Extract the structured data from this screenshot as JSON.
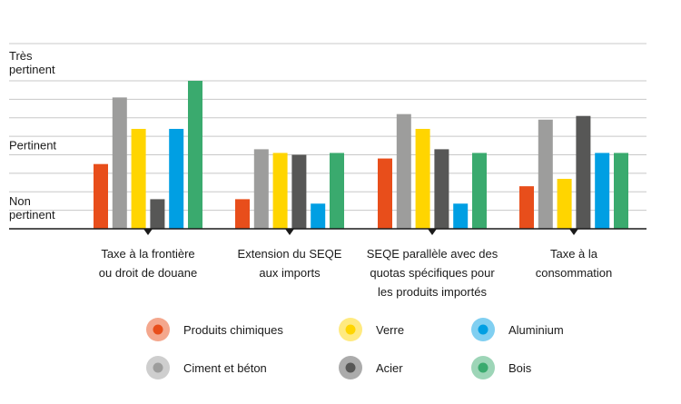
{
  "chart_data": {
    "type": "bar",
    "title": "",
    "xlabel": "",
    "ylabel": "",
    "ylim": [
      0,
      4
    ],
    "grid": true,
    "legend_position": "bottom",
    "y_tick_labels": [
      {
        "value": 0,
        "lines": [
          "Non",
          "pertinent"
        ]
      },
      {
        "value": 2,
        "lines": [
          "Pertinent"
        ]
      },
      {
        "value": 4,
        "lines": [
          "Très",
          "pertinent"
        ]
      }
    ],
    "categories": [
      [
        "Taxe à la frontière",
        "ou droit de douane"
      ],
      [
        "Extension du SEQE",
        "aux imports"
      ],
      [
        "SEQE parallèle avec des",
        "quotas spécifiques pour",
        "les produits importés"
      ],
      [
        "Taxe à la",
        "consommation"
      ]
    ],
    "series": [
      {
        "name": "Produits chimiques",
        "color": "#e84e1b",
        "values": [
          1.75,
          0.8,
          1.9,
          1.15
        ]
      },
      {
        "name": "Ciment et béton",
        "color": "#9d9d9c",
        "values": [
          3.55,
          2.15,
          3.1,
          2.95
        ]
      },
      {
        "name": "Verre",
        "color": "#ffd500",
        "values": [
          2.7,
          2.05,
          2.7,
          1.35
        ]
      },
      {
        "name": "Acier",
        "color": "#575756",
        "values": [
          0.8,
          2.0,
          2.15,
          3.05
        ]
      },
      {
        "name": "Aluminium",
        "color": "#009fe3",
        "values": [
          2.7,
          0.68,
          0.68,
          2.05
        ]
      },
      {
        "name": "Bois",
        "color": "#3aaa6e",
        "values": [
          4.0,
          2.05,
          2.05,
          2.05
        ]
      }
    ]
  }
}
